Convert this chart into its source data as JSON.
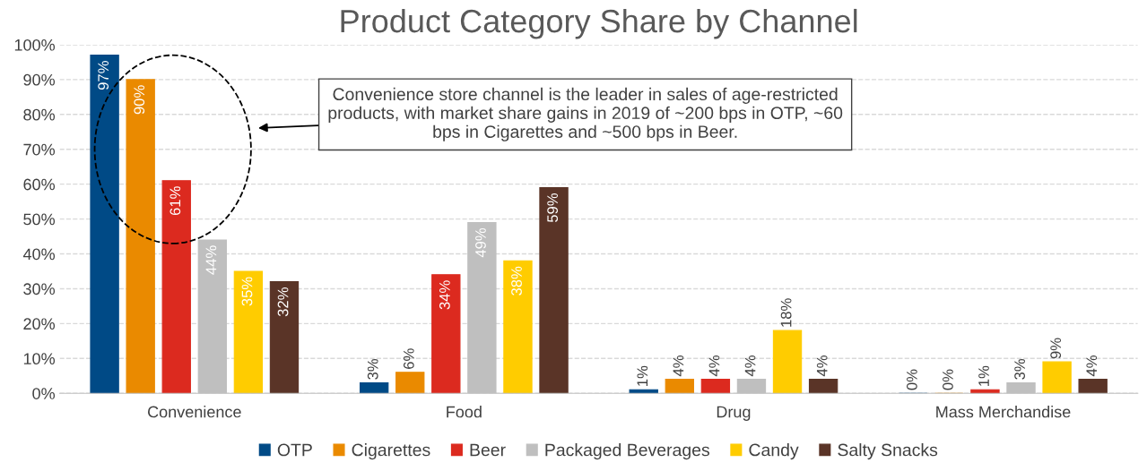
{
  "chart_data": {
    "type": "bar",
    "title": "Product Category Share by Channel",
    "categories": [
      "Convenience",
      "Food",
      "Drug",
      "Mass Merchandise"
    ],
    "series": [
      {
        "name": "OTP",
        "color": "#004a86",
        "values": [
          97,
          3,
          1,
          0
        ],
        "value_labels": [
          "97%",
          "3%",
          "1%",
          "0%"
        ]
      },
      {
        "name": "Cigarettes",
        "color": "#ea8a00",
        "values": [
          90,
          6,
          4,
          0
        ],
        "value_labels": [
          "90%",
          "6%",
          "4%",
          "0%"
        ]
      },
      {
        "name": "Beer",
        "color": "#dc2a1f",
        "values": [
          61,
          34,
          4,
          1
        ],
        "value_labels": [
          "61%",
          "34%",
          "4%",
          "1%"
        ]
      },
      {
        "name": "Packaged Beverages",
        "color": "#bfbfbf",
        "values": [
          44,
          49,
          4,
          3
        ],
        "value_labels": [
          "44%",
          "49%",
          "4%",
          "3%"
        ]
      },
      {
        "name": "Candy",
        "color": "#ffcc00",
        "values": [
          35,
          38,
          18,
          9
        ],
        "value_labels": [
          "35%",
          "38%",
          "18%",
          "9%"
        ]
      },
      {
        "name": "Salty Snacks",
        "color": "#5a3427",
        "values": [
          32,
          59,
          4,
          4
        ],
        "value_labels": [
          "32%",
          "59%",
          "4%",
          "4%"
        ]
      }
    ],
    "ylim": [
      0,
      100
    ],
    "yticks": [
      {
        "value": 0,
        "label": "0%"
      },
      {
        "value": 10,
        "label": "10%"
      },
      {
        "value": 20,
        "label": "20%"
      },
      {
        "value": 30,
        "label": "30%"
      },
      {
        "value": 40,
        "label": "40%"
      },
      {
        "value": 50,
        "label": "50%"
      },
      {
        "value": 60,
        "label": "60%"
      },
      {
        "value": 70,
        "label": "70%"
      },
      {
        "value": 80,
        "label": "80%"
      },
      {
        "value": 90,
        "label": "90%"
      },
      {
        "value": 100,
        "label": "100%"
      }
    ],
    "grid": "y",
    "legend": "bottom",
    "annotations": [
      "Convenience store channel is the leader in sales of age-restricted products, with market share gains in 2019 of ~200 bps in OTP, ~60 bps in Cigarettes and ~500 bps in Beer."
    ]
  }
}
